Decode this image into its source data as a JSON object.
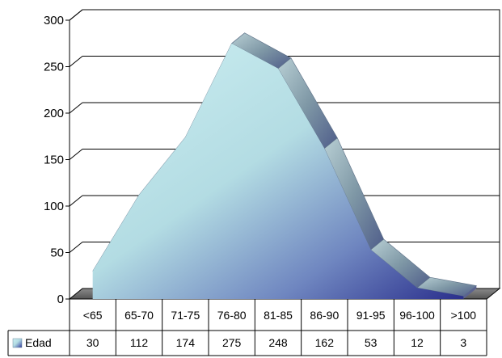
{
  "chart_data": {
    "type": "area",
    "style": "3d",
    "categories": [
      "<65",
      "65-70",
      "71-75",
      "76-80",
      "81-85",
      "86-90",
      "91-95",
      "96-100",
      ">100"
    ],
    "series": [
      {
        "name": "Edad",
        "values": [
          30,
          112,
          174,
          275,
          248,
          162,
          53,
          12,
          3
        ]
      }
    ],
    "ylim": [
      0,
      300
    ],
    "yticks": [
      "0",
      "50",
      "100",
      "150",
      "200",
      "250",
      "300"
    ],
    "grid": true,
    "data_table": true,
    "colors": {
      "area_light": "#bfe6ea",
      "area_dark": "#2a2f8c",
      "top_ridge": "#8aa4ad",
      "floor": "#777777"
    }
  }
}
